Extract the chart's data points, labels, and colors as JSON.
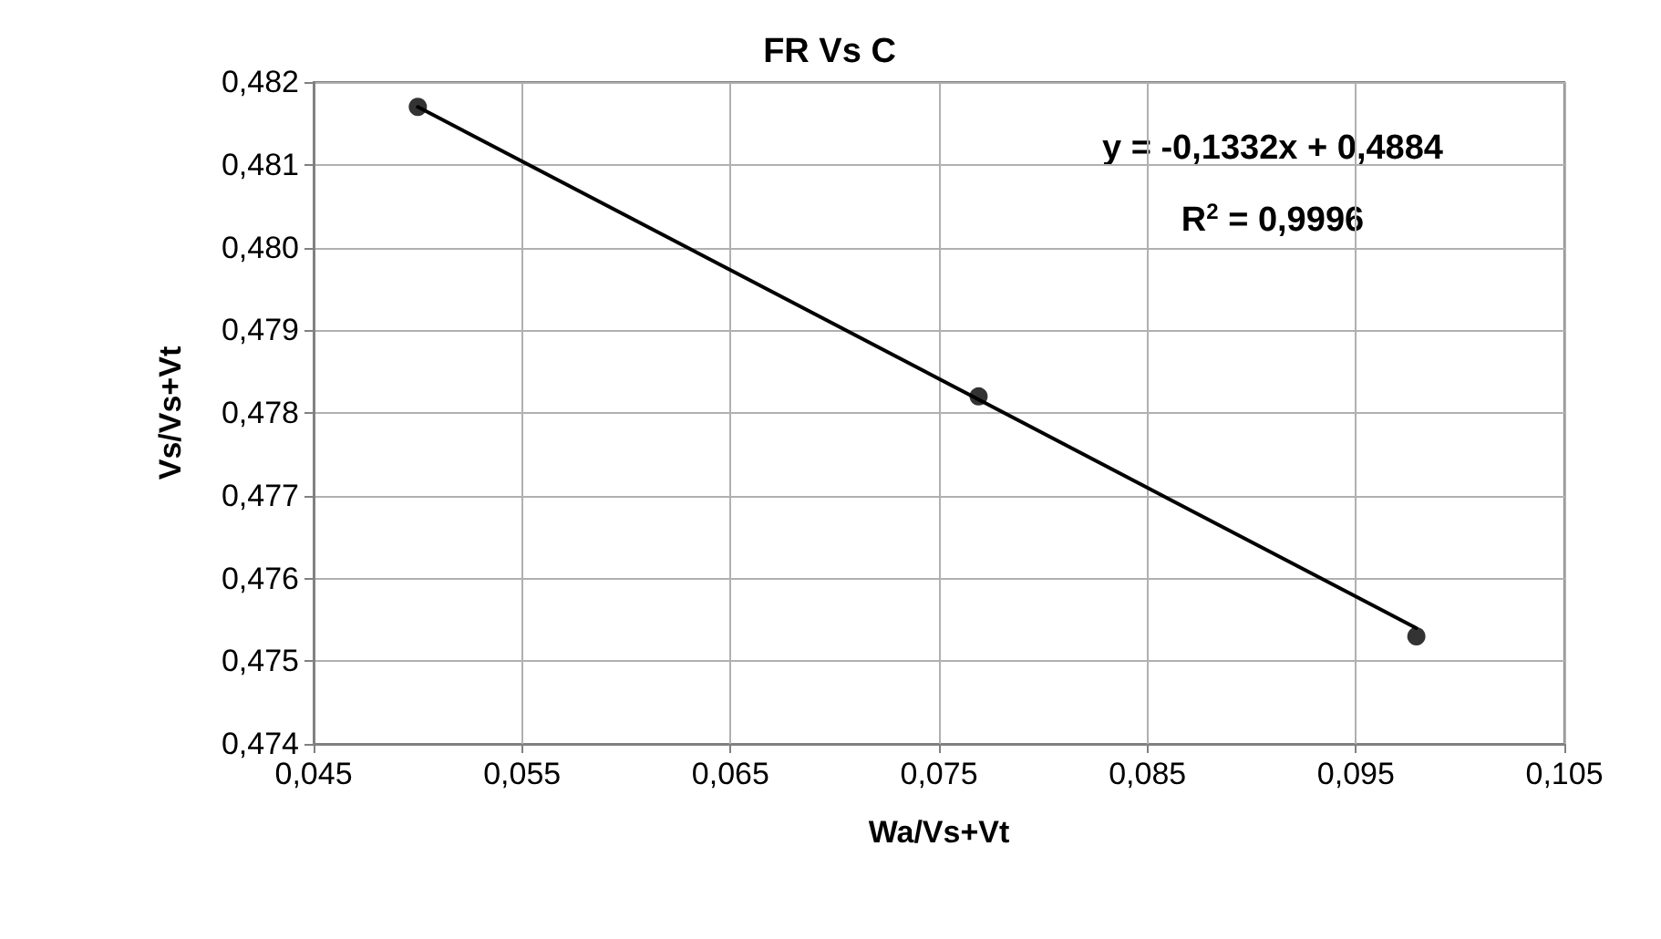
{
  "chart_data": {
    "type": "scatter",
    "title": "FR Vs C",
    "xlabel": "Wa/Vs+Vt",
    "ylabel": "Vs/Vs+Vt",
    "series": [
      {
        "color": "#000000",
        "x": [
          0.05,
          0.0769,
          0.0979
        ],
        "values": [
          0.4817,
          0.4782,
          0.4753
        ],
        "marker": "circle"
      },
      {
        "type": "line",
        "color": "#000000",
        "x": [
          0.05,
          0.0979
        ],
        "values": [
          0.4817,
          0.4754
        ],
        "marker": "none",
        "line_style": "solid"
      }
    ],
    "xlim": [
      0.045,
      0.105
    ],
    "xticks": [
      {
        "value": 0.045,
        "label": "0,045"
      },
      {
        "value": 0.055,
        "label": "0,055"
      },
      {
        "value": 0.065,
        "label": "0,065"
      },
      {
        "value": 0.075,
        "label": "0,075"
      },
      {
        "value": 0.085,
        "label": "0,085"
      },
      {
        "value": 0.095,
        "label": "0,095"
      },
      {
        "value": 0.105,
        "label": "0,105"
      }
    ],
    "ylim": [
      0.474,
      0.482
    ],
    "yticks": [
      {
        "value": 0.474,
        "label": "0,474"
      },
      {
        "value": 0.475,
        "label": "0,475"
      },
      {
        "value": 0.476,
        "label": "0,476"
      },
      {
        "value": 0.477,
        "label": "0,477"
      },
      {
        "value": 0.478,
        "label": "0,478"
      },
      {
        "value": 0.479,
        "label": "0,479"
      },
      {
        "value": 0.48,
        "label": "0,480"
      },
      {
        "value": 0.481,
        "label": "0,481"
      },
      {
        "value": 0.482,
        "label": "0,482"
      }
    ],
    "grid": true,
    "annotations": [
      "y = -0,1332x + 0,4884",
      "R$^{2}$ = 0,9996"
    ]
  }
}
